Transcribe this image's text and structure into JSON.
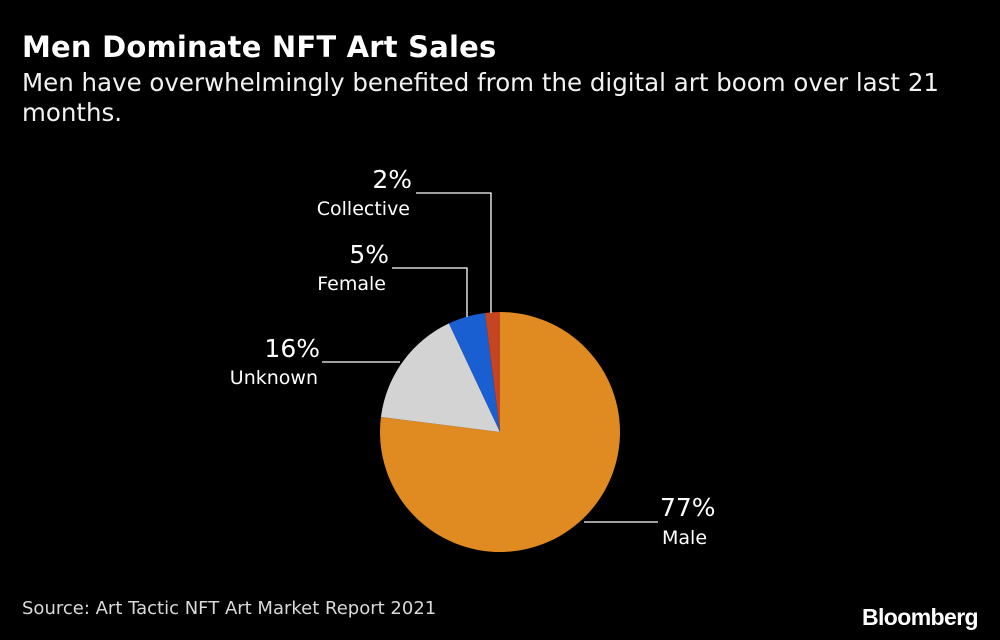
{
  "header": {
    "title": "Men Dominate NFT Art Sales",
    "subtitle": "Men have overwhelmingly benefited from the digital art boom over last 21 months."
  },
  "chart_data": {
    "type": "pie",
    "title": "Men Dominate NFT Art Sales",
    "subtitle": "Men have overwhelmingly benefited from the digital art boom over last 21 months.",
    "slices": [
      {
        "label": "Male",
        "value": 77,
        "value_label": "77%",
        "color": "#e08a22"
      },
      {
        "label": "Unknown",
        "value": 16,
        "value_label": "16%",
        "color": "#d3d3d3"
      },
      {
        "label": "Female",
        "value": 5,
        "value_label": "5%",
        "color": "#1a5fd1"
      },
      {
        "label": "Collective",
        "value": 2,
        "value_label": "2%",
        "color": "#c4451f"
      }
    ],
    "start_angle": "12 o'clock",
    "direction": "clockwise",
    "legend": "none (direct labels)"
  },
  "footer": {
    "source": "Source: Art Tactic NFT Art Market Report 2021",
    "brand": "Bloomberg"
  },
  "colors": {
    "background": "#000000",
    "text": "#ffffff",
    "leader_lines": "#ffffff"
  }
}
